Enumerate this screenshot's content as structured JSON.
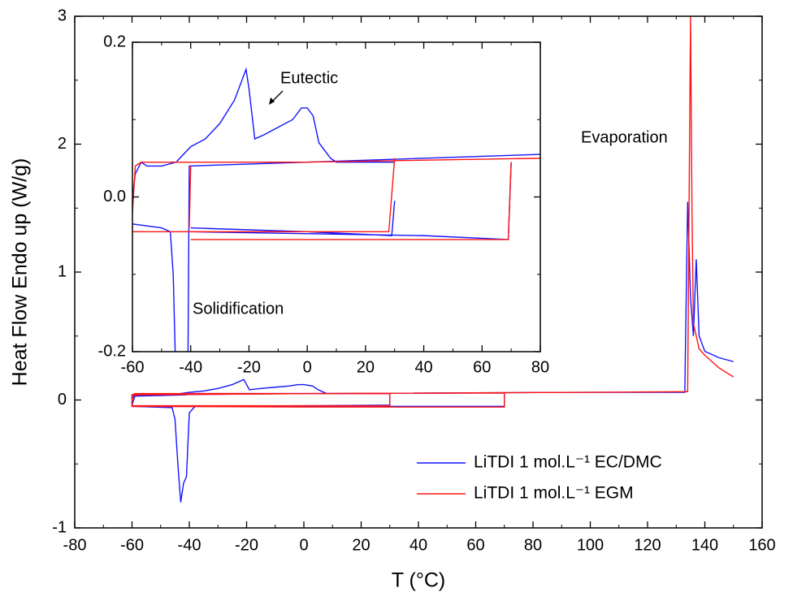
{
  "chart_data": [
    {
      "type": "line",
      "xlabel": "T (°C)",
      "ylabel": "Heat Flow Endo up (W/g)",
      "xlim": [
        -80,
        160
      ],
      "ylim": [
        -1,
        3
      ],
      "xticks": [
        -80,
        -60,
        -40,
        -20,
        0,
        20,
        40,
        60,
        80,
        100,
        120,
        140,
        160
      ],
      "yticks": [
        -1,
        0,
        1,
        2,
        3
      ],
      "legend": "lower right",
      "annotations": [
        "Evaporation"
      ],
      "series": [
        {
          "name": "LiTDI 1 mol.L⁻¹ EC/DMC",
          "color": "#1414ff",
          "x": [
            -60,
            -59,
            -55,
            -50,
            -45,
            -40,
            -35,
            -30,
            -25,
            -21,
            -19,
            -15,
            -10,
            -5,
            -2,
            0,
            3,
            5,
            8,
            10,
            20,
            30,
            30,
            0,
            -38,
            -40,
            -41,
            -42,
            -43,
            -44,
            -45,
            -46,
            -60,
            -60,
            -41,
            -40,
            0,
            70,
            70,
            0,
            -60,
            -60,
            0,
            50,
            100,
            133,
            134,
            135,
            136,
            137,
            138,
            140,
            145,
            150
          ],
          "values": [
            -0.04,
            0.03,
            0.035,
            0.035,
            0.045,
            0.06,
            0.07,
            0.09,
            0.12,
            0.16,
            0.08,
            0.09,
            0.1,
            0.11,
            0.12,
            0.12,
            0.11,
            0.08,
            0.05,
            0.05,
            0.05,
            0.05,
            -0.04,
            -0.045,
            -0.05,
            -0.1,
            -0.6,
            -0.65,
            -0.8,
            -0.5,
            -0.15,
            -0.06,
            -0.05,
            0.03,
            0.04,
            0.05,
            0.05,
            0.055,
            -0.05,
            -0.05,
            -0.05,
            0.04,
            0.05,
            0.055,
            0.06,
            0.06,
            1.55,
            0.8,
            0.5,
            1.1,
            0.5,
            0.38,
            0.33,
            0.3
          ]
        },
        {
          "name": "LiTDI 1 mol.L⁻¹ EGM",
          "color": "#ff1414",
          "x": [
            -60,
            -59,
            0,
            30,
            30,
            0,
            -60,
            -60,
            -59,
            0,
            70,
            70,
            0,
            -60,
            -60,
            0,
            100,
            134,
            135,
            135.5,
            136,
            138,
            140,
            145,
            150
          ],
          "values": [
            0.0,
            0.045,
            0.05,
            0.05,
            -0.045,
            -0.045,
            -0.045,
            0.04,
            0.05,
            0.05,
            0.055,
            -0.055,
            -0.055,
            -0.05,
            0.04,
            0.05,
            0.06,
            0.065,
            3.0,
            1.5,
            0.6,
            0.4,
            0.35,
            0.25,
            0.18
          ]
        }
      ]
    },
    {
      "type": "line",
      "xlim": [
        -60,
        80
      ],
      "ylim": [
        -0.2,
        0.2
      ],
      "xticks": [
        -60,
        -40,
        -20,
        0,
        20,
        40,
        60,
        80
      ],
      "yticks": [
        -0.2,
        {
          "value": 0,
          "label": "0.0"
        },
        0.2
      ],
      "annotations": [
        "Eutectic",
        "Solidification"
      ],
      "series": [
        {
          "color": "#1414ff",
          "x": [
            -60,
            -59,
            -57,
            -55,
            -50,
            -45,
            -40,
            -35,
            -30,
            -25,
            -21,
            -20,
            -18,
            -15,
            -10,
            -5,
            -2,
            0,
            2,
            4,
            6,
            8,
            10,
            30,
            null,
            -60,
            -50,
            -47,
            -46,
            -45,
            null,
            -41,
            -40.5,
            0,
            80,
            null,
            -40,
            0,
            29,
            30,
            null,
            -40,
            40,
            69,
            70
          ],
          "values": [
            0.0,
            0.03,
            0.045,
            0.04,
            0.04,
            0.045,
            0.065,
            0.075,
            0.095,
            0.125,
            0.165,
            0.14,
            0.075,
            0.08,
            0.09,
            0.1,
            0.115,
            0.115,
            0.105,
            0.07,
            0.06,
            0.05,
            0.045,
            0.045,
            null,
            -0.035,
            -0.04,
            -0.045,
            -0.1,
            -0.25,
            null,
            -0.25,
            0.04,
            0.045,
            0.055,
            null,
            -0.04,
            -0.045,
            -0.05,
            -0.005,
            null,
            -0.045,
            -0.05,
            -0.055,
            0.045
          ]
        },
        {
          "color": "#ff1414",
          "x": [
            -60,
            -59,
            -57,
            0,
            80,
            null,
            -60,
            0,
            28,
            30,
            null,
            -40.5,
            -40,
            null,
            -40,
            40,
            69,
            70
          ],
          "values": [
            -0.02,
            0.04,
            0.045,
            0.045,
            0.05,
            null,
            -0.045,
            -0.045,
            -0.045,
            0.05,
            null,
            -0.04,
            0.04,
            null,
            -0.055,
            -0.055,
            -0.055,
            0.045
          ]
        }
      ]
    }
  ]
}
